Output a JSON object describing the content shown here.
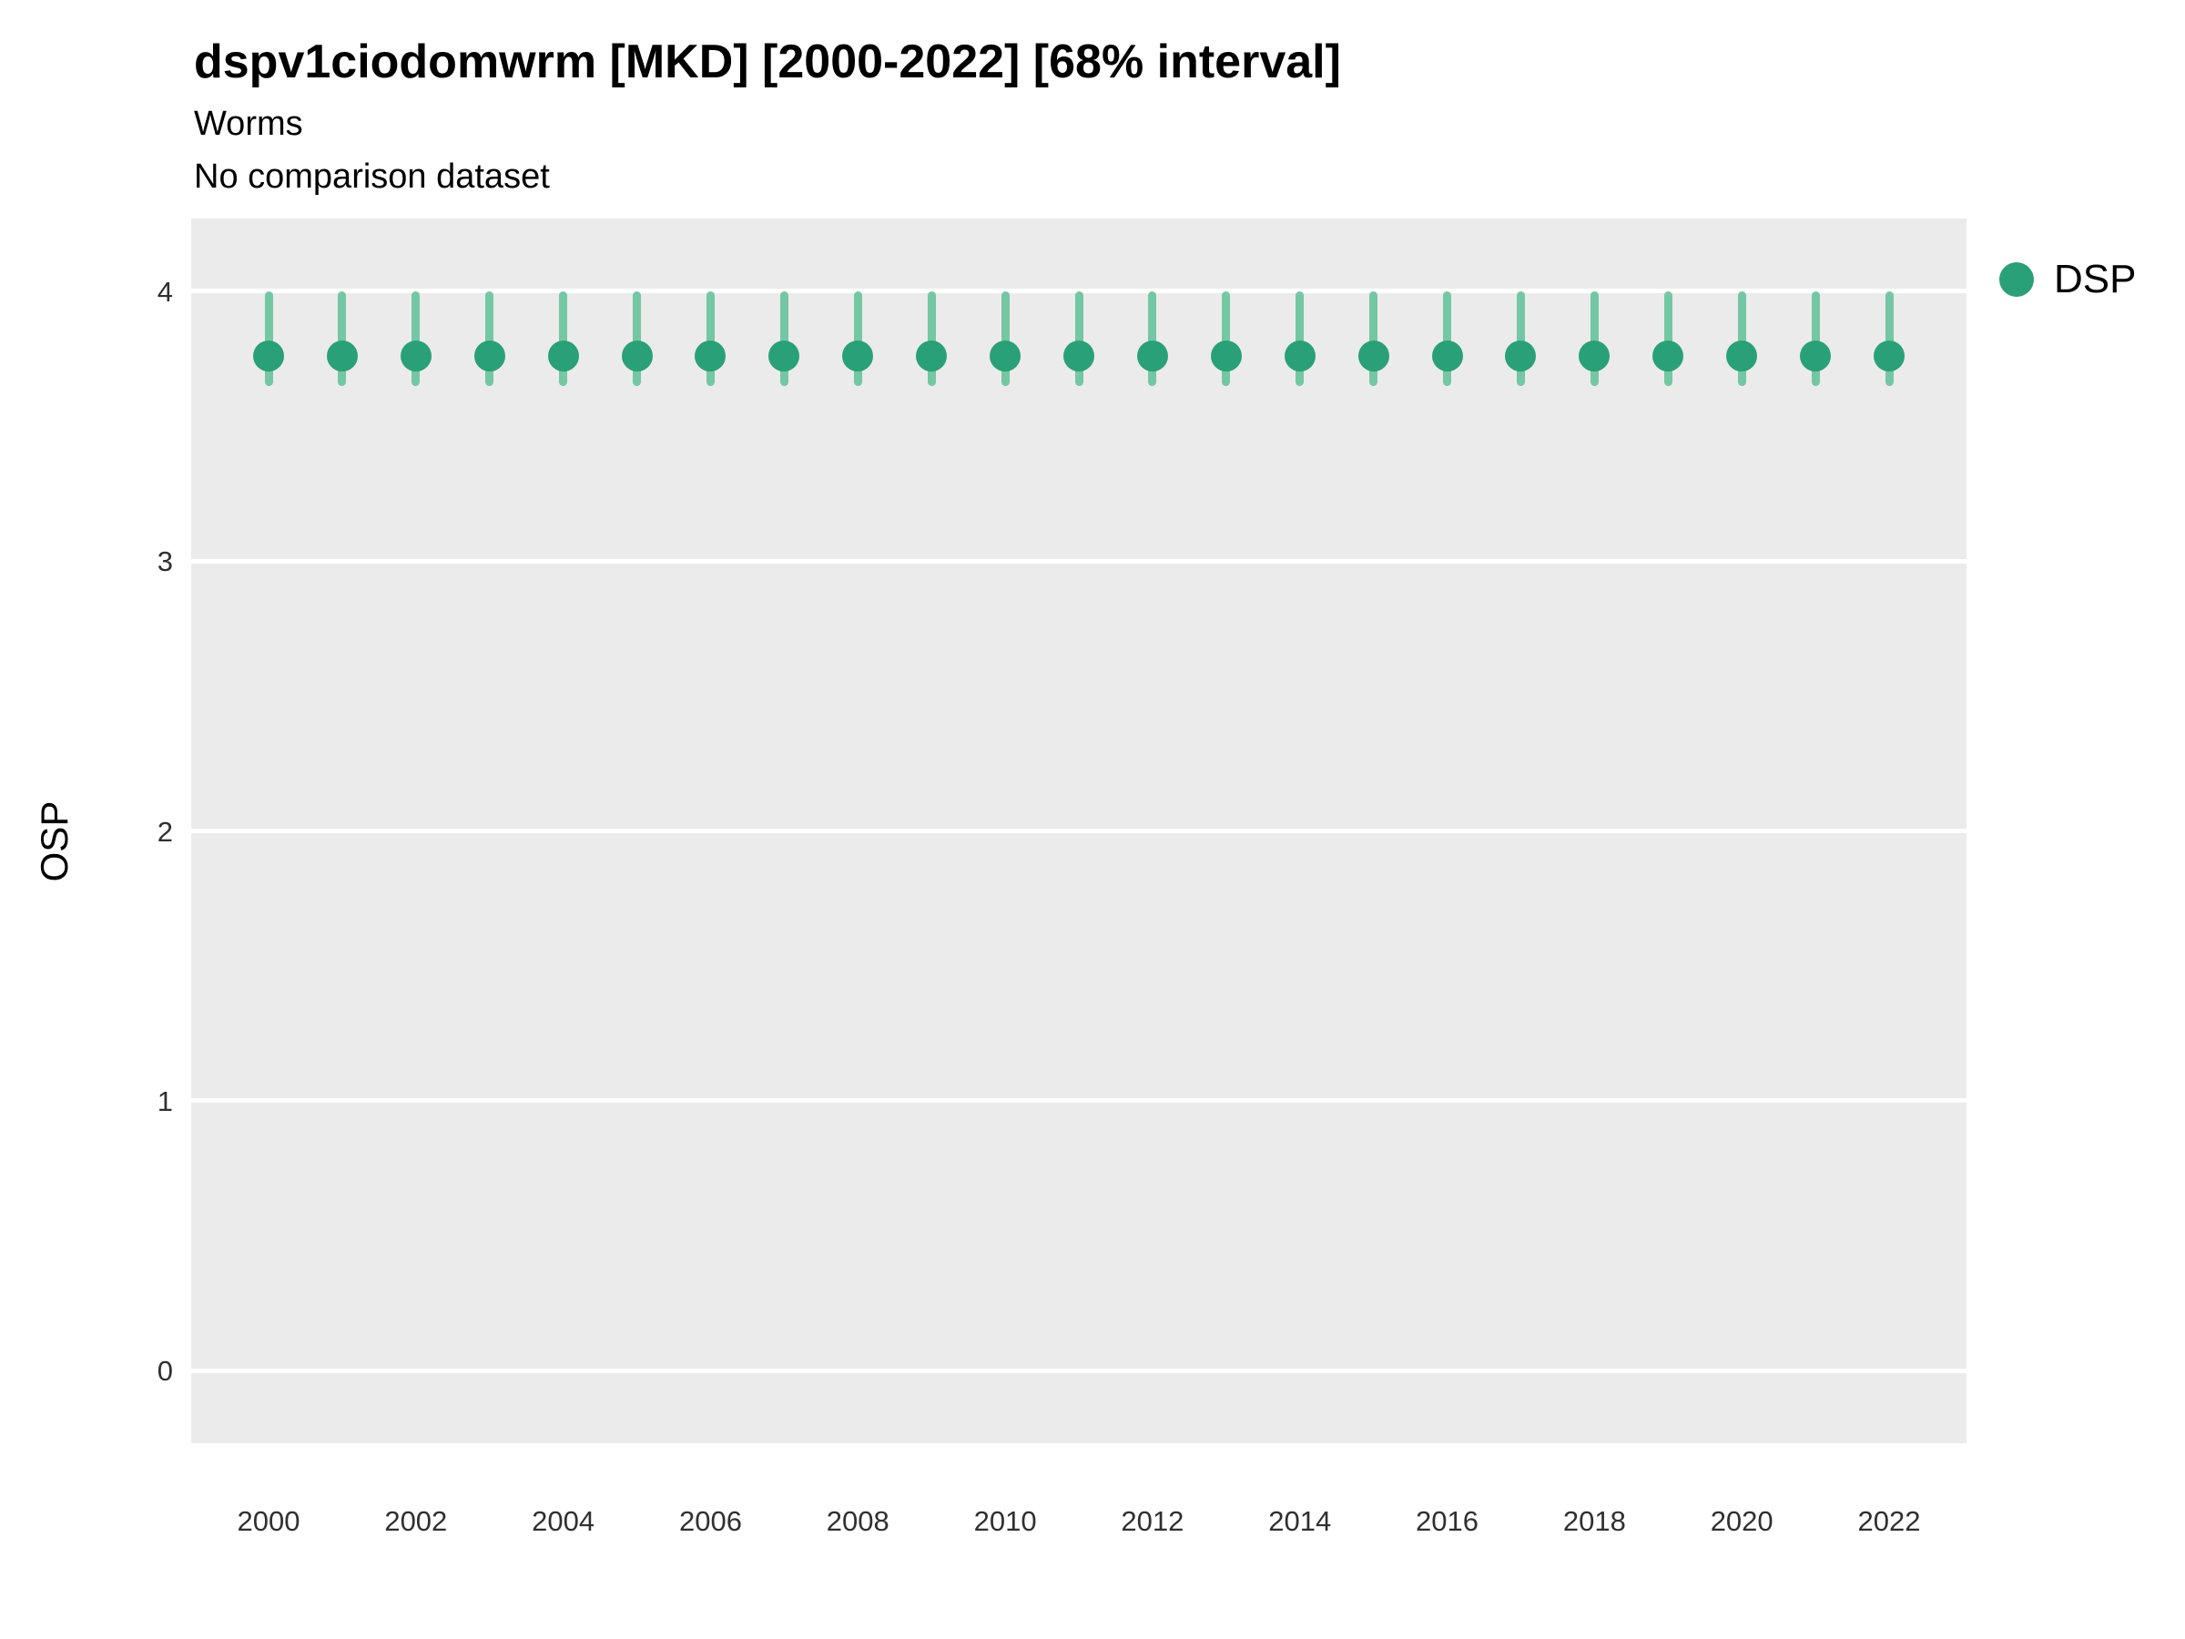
{
  "chart": {
    "title": "dspv1ciodomwrm [MKD] [2000-2022] [68% interval]",
    "subtitle": "Worms",
    "note": "No comparison dataset",
    "ylabel": "OSP",
    "legend": {
      "label": "DSP"
    }
  },
  "chart_data": {
    "type": "scatter",
    "subtype": "pointrange",
    "title": "dspv1ciodomwrm [MKD] [2000-2022] [68% interval]",
    "subtitle": "Worms",
    "note": "No comparison dataset",
    "xlabel": "",
    "ylabel": "OSP",
    "x": [
      2000,
      2001,
      2002,
      2003,
      2004,
      2005,
      2006,
      2007,
      2008,
      2009,
      2010,
      2011,
      2012,
      2013,
      2014,
      2015,
      2016,
      2017,
      2018,
      2019,
      2020,
      2021,
      2022
    ],
    "series": [
      {
        "name": "DSP",
        "estimate": [
          3.76,
          3.76,
          3.76,
          3.76,
          3.76,
          3.76,
          3.76,
          3.76,
          3.76,
          3.76,
          3.76,
          3.76,
          3.76,
          3.76,
          3.76,
          3.76,
          3.76,
          3.76,
          3.76,
          3.76,
          3.76,
          3.76,
          3.76
        ],
        "lower": [
          3.65,
          3.65,
          3.65,
          3.65,
          3.65,
          3.65,
          3.65,
          3.65,
          3.65,
          3.65,
          3.65,
          3.65,
          3.65,
          3.65,
          3.65,
          3.65,
          3.65,
          3.65,
          3.65,
          3.65,
          3.65,
          3.65,
          3.65
        ],
        "upper": [
          4.0,
          4.0,
          4.0,
          4.0,
          4.0,
          4.0,
          4.0,
          4.0,
          4.0,
          4.0,
          4.0,
          4.0,
          4.0,
          4.0,
          4.0,
          4.0,
          4.0,
          4.0,
          4.0,
          4.0,
          4.0,
          4.0,
          4.0
        ]
      }
    ],
    "ylim": [
      -0.27,
      4.27
    ],
    "yticks": [
      0,
      1,
      2,
      3,
      4
    ],
    "xticks": [
      2000,
      2002,
      2004,
      2006,
      2008,
      2010,
      2012,
      2014,
      2016,
      2018,
      2020,
      2022
    ],
    "grid": "major-horizontal",
    "legend_position": "right-top",
    "colors": {
      "point": "#2aa078",
      "interval": "#74c7a3",
      "panel_bg": "#ebebeb",
      "gridline": "#ffffff"
    }
  }
}
